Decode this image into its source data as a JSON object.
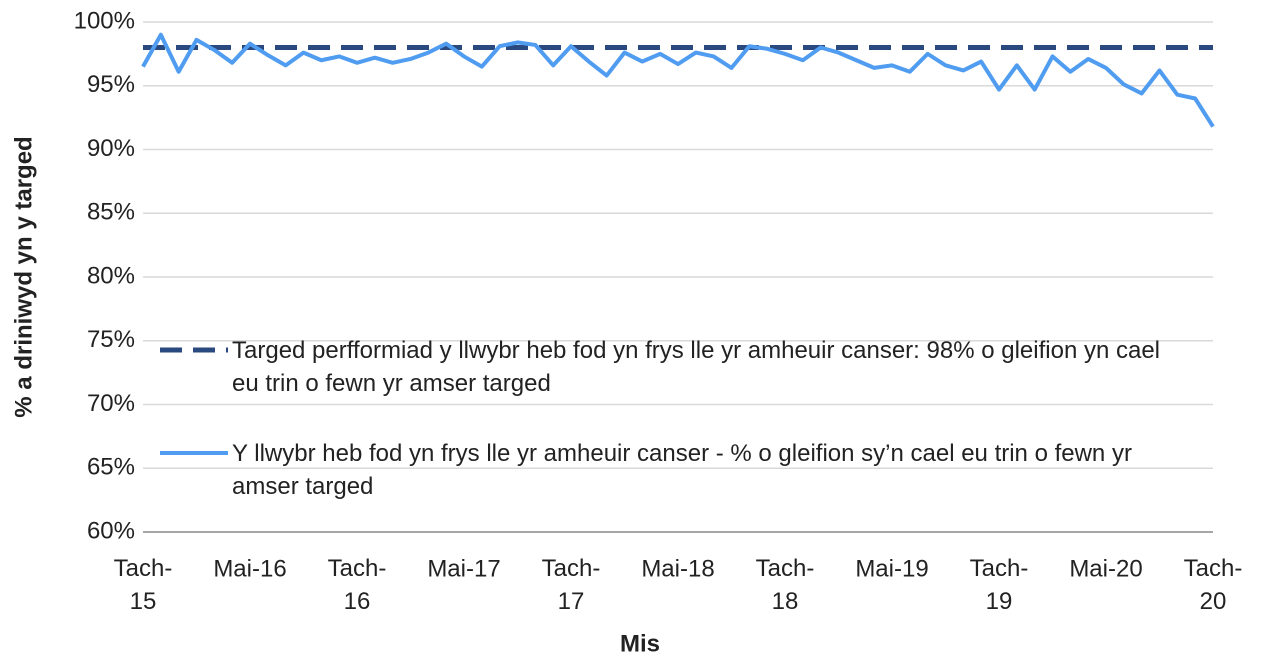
{
  "chart_data": {
    "type": "line",
    "x_label": "Mis",
    "y_label": "% a driniwyd yn y targed",
    "categories": [
      "Tach-15",
      null,
      null,
      null,
      null,
      null,
      "Mai-16",
      null,
      null,
      null,
      null,
      null,
      "Tach-16",
      null,
      null,
      null,
      null,
      null,
      "Mai-17",
      null,
      null,
      null,
      null,
      null,
      "Tach-17",
      null,
      null,
      null,
      null,
      null,
      "Mai-18",
      null,
      null,
      null,
      null,
      null,
      "Tach-18",
      null,
      null,
      null,
      null,
      null,
      "Mai-19",
      null,
      null,
      null,
      null,
      null,
      "Tach-19",
      null,
      null,
      null,
      null,
      null,
      "Mai-20",
      null,
      null,
      null,
      null,
      null,
      "Tach-20"
    ],
    "series": [
      {
        "name": "Targed perfformiad y llwybr heb fod yn frys lle yr amheuir canser:  98% o gleifion yn cael eu trin o fewn yr amser targed",
        "color": "#2a4a7f",
        "dashed": true,
        "values": [
          98,
          98,
          98,
          98,
          98,
          98,
          98,
          98,
          98,
          98,
          98,
          98,
          98,
          98,
          98,
          98,
          98,
          98,
          98,
          98,
          98,
          98,
          98,
          98,
          98,
          98,
          98,
          98,
          98,
          98,
          98,
          98,
          98,
          98,
          98,
          98,
          98,
          98,
          98,
          98,
          98,
          98,
          98,
          98,
          98,
          98,
          98,
          98,
          98,
          98,
          98,
          98,
          98,
          98,
          98,
          98,
          98,
          98,
          98,
          98,
          98
        ]
      },
      {
        "name": "Y llwybr heb fod yn frys lle yr amheuir canser - % o gleifion sy’n cael eu trin o fewn yr amser targed",
        "color": "#4f9cf0",
        "dashed": false,
        "values": [
          96.5,
          99.0,
          96.1,
          98.6,
          97.8,
          96.8,
          98.3,
          97.4,
          96.6,
          97.6,
          97.0,
          97.3,
          96.8,
          97.2,
          96.8,
          97.1,
          97.6,
          98.3,
          97.3,
          96.5,
          98.1,
          98.4,
          98.2,
          96.6,
          98.1,
          96.9,
          95.8,
          97.6,
          96.9,
          97.5,
          96.7,
          97.6,
          97.3,
          96.4,
          98.1,
          97.9,
          97.5,
          97.0,
          98.0,
          97.6,
          97.0,
          96.4,
          96.6,
          96.1,
          97.5,
          96.6,
          96.2,
          96.9,
          94.7,
          96.6,
          94.7,
          97.3,
          96.1,
          97.1,
          96.4,
          95.1,
          94.4,
          96.2,
          94.3,
          94.0,
          91.8
        ]
      }
    ],
    "ylim": [
      60,
      100
    ],
    "yticks": [
      {
        "value": 60,
        "label": "60%"
      },
      {
        "value": 65,
        "label": "65%"
      },
      {
        "value": 70,
        "label": "70%"
      },
      {
        "value": 75,
        "label": "75%"
      },
      {
        "value": 80,
        "label": "80%"
      },
      {
        "value": 85,
        "label": "85%"
      },
      {
        "value": 90,
        "label": "90%"
      },
      {
        "value": 95,
        "label": "95%"
      },
      {
        "value": 100,
        "label": "100%"
      }
    ],
    "grid": true
  }
}
